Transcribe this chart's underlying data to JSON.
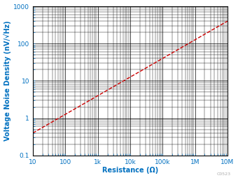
{
  "title": "",
  "xlabel": "Resistance (Ω)",
  "ylabel": "Voltage Noise Density (nV/√Hz)",
  "xlim": [
    10,
    10000000.0
  ],
  "ylim": [
    0.1,
    1000
  ],
  "line_color": "#cc0000",
  "line_style": "--",
  "line_width": 1.0,
  "axis_color": "#0070c0",
  "label_fontsize": 7,
  "tick_fontsize": 6.5,
  "watermark": "C0523",
  "background_color": "#ffffff",
  "grid_color": "#000000",
  "grid_linewidth_major": 0.5,
  "grid_linewidth_minor": 0.3,
  "spine_color": "#000000",
  "tick_color": "#0070c0"
}
